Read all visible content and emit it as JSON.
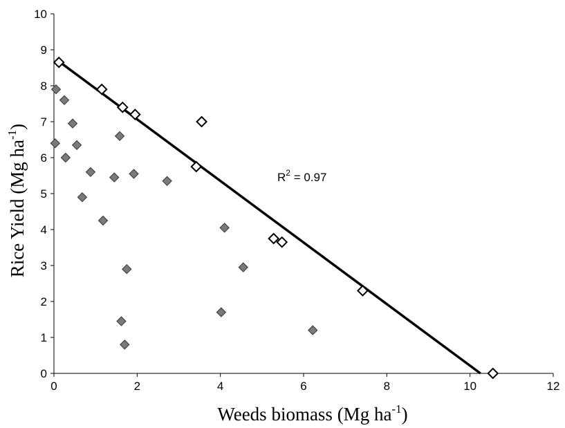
{
  "chart_data": {
    "type": "scatter",
    "xlabel_main": "Weeds biomass (Mg ha",
    "xlabel_sup": "-1",
    "xlabel_end": ")",
    "ylabel_main": "Rice Yield (Mg ha",
    "ylabel_sup": "-1",
    "ylabel_end": ")",
    "xlim": [
      0,
      12
    ],
    "ylim": [
      0,
      10
    ],
    "x_ticks": [
      "0",
      "2",
      "4",
      "6",
      "8",
      "10",
      "12"
    ],
    "y_ticks": [
      "0",
      "1",
      "2",
      "3",
      "4",
      "5",
      "6",
      "7",
      "8",
      "9",
      "10"
    ],
    "series": [
      {
        "marker": "filled-diamond",
        "color": "#7a7a7a",
        "points": [
          [
            0.05,
            7.9
          ],
          [
            0.25,
            7.6
          ],
          [
            0.45,
            6.95
          ],
          [
            0.03,
            6.4
          ],
          [
            0.55,
            6.35
          ],
          [
            0.28,
            6.0
          ],
          [
            0.88,
            5.6
          ],
          [
            1.45,
            5.45
          ],
          [
            1.58,
            6.6
          ],
          [
            1.92,
            5.55
          ],
          [
            2.72,
            5.35
          ],
          [
            0.68,
            4.9
          ],
          [
            1.18,
            4.25
          ],
          [
            4.1,
            4.05
          ],
          [
            1.75,
            2.9
          ],
          [
            4.55,
            2.95
          ],
          [
            4.02,
            1.7
          ],
          [
            1.62,
            1.45
          ],
          [
            6.22,
            1.2
          ],
          [
            1.7,
            0.8
          ]
        ]
      },
      {
        "marker": "open-diamond",
        "color": "#000000",
        "points": [
          [
            0.12,
            8.65
          ],
          [
            1.15,
            7.9
          ],
          [
            1.65,
            7.4
          ],
          [
            1.95,
            7.2
          ],
          [
            3.55,
            7.0
          ],
          [
            3.42,
            5.75
          ],
          [
            5.28,
            3.75
          ],
          [
            5.48,
            3.65
          ],
          [
            7.42,
            2.3
          ],
          [
            10.55,
            0.0
          ]
        ]
      }
    ],
    "trendline": {
      "x": [
        0.15,
        10.25
      ],
      "y": [
        8.65,
        0.0
      ]
    },
    "annotation_r2": {
      "r": "R",
      "sup": "2",
      "rest": " = 0.97"
    },
    "grid": false
  }
}
